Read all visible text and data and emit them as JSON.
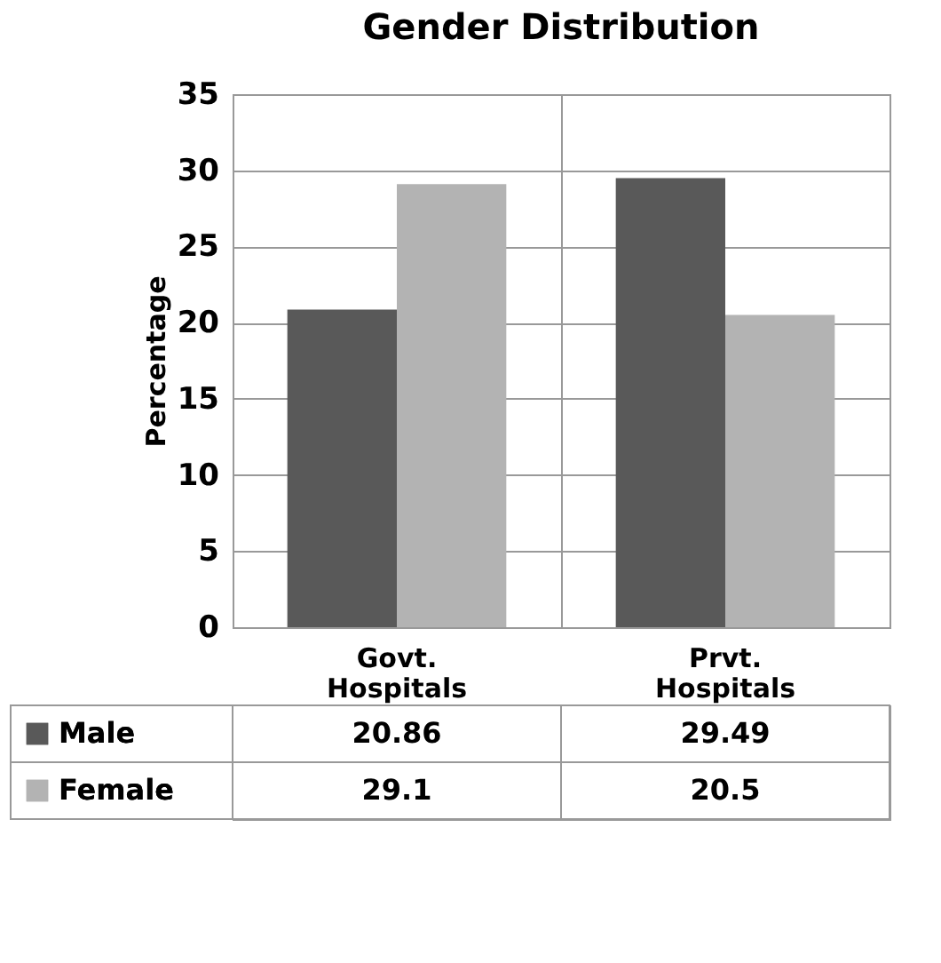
{
  "chart_data": {
    "type": "bar",
    "title": "Gender Distribution",
    "ylabel": "Percentage",
    "categories": [
      "Govt. Hospitals",
      "Prvt. Hospitals"
    ],
    "series": [
      {
        "name": "Male",
        "color": "#595959",
        "values": [
          20.86,
          29.49
        ]
      },
      {
        "name": "Female",
        "color": "#b3b3b3",
        "values": [
          29.1,
          20.5
        ]
      }
    ],
    "ylim": [
      0,
      35
    ],
    "yticks": [
      0,
      5,
      10,
      15,
      20,
      25,
      30,
      35
    ],
    "grid": "y",
    "data_labels": true,
    "legend": "bottom"
  }
}
